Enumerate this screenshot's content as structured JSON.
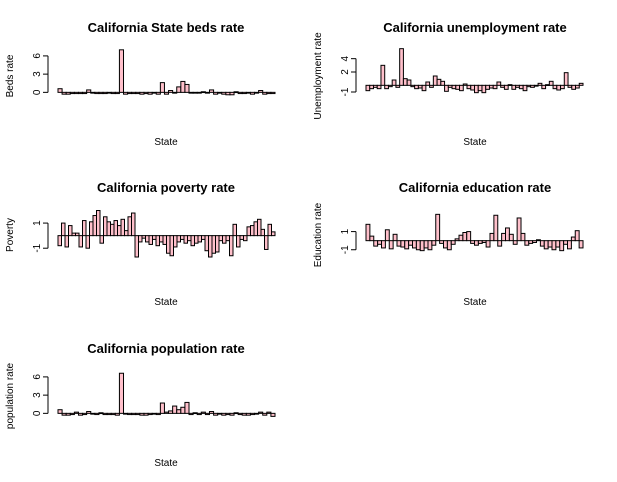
{
  "chart_data": [
    {
      "type": "bar",
      "title": "California State beds rate",
      "xlabel": "State",
      "ylabel": "Beds rate",
      "yticks": [
        0,
        3,
        6
      ],
      "ylim": [
        -0.6,
        7.3
      ],
      "bar_fill": "#ffc0cb",
      "bar_stroke": "#000000",
      "values": [
        0.6,
        -0.3,
        -0.3,
        -0.2,
        -0.2,
        -0.2,
        -0.2,
        0.4,
        -0.1,
        -0.2,
        -0.2,
        -0.2,
        -0.1,
        -0.2,
        -0.2,
        7.0,
        -0.3,
        -0.2,
        -0.2,
        -0.2,
        -0.3,
        -0.2,
        -0.3,
        0.0,
        -0.3,
        1.6,
        -0.3,
        0.3,
        0.0,
        0.9,
        1.8,
        1.3,
        0.0,
        -0.1,
        0.0,
        0.1,
        -0.1,
        0.4,
        -0.3,
        -0.1,
        -0.3,
        -0.4,
        -0.4,
        0.1,
        -0.2,
        -0.2,
        0.0,
        -0.3,
        0.0,
        0.3,
        -0.3,
        -0.2,
        -0.2
      ]
    },
    {
      "type": "bar",
      "title": "California unemployment rate",
      "xlabel": "State",
      "ylabel": "Unemployment rate",
      "yticks": [
        -1,
        2,
        4
      ],
      "ylim": [
        -1.6,
        5.6
      ],
      "bar_fill": "#ffc0cb",
      "bar_stroke": "#000000",
      "values": [
        -0.8,
        -0.5,
        -0.3,
        -0.5,
        3.0,
        -0.5,
        -0.2,
        0.8,
        -0.3,
        5.5,
        1.0,
        0.8,
        -0.2,
        -0.5,
        -0.4,
        -0.8,
        0.5,
        -0.3,
        1.4,
        0.9,
        0.6,
        -0.9,
        -0.3,
        -0.5,
        -0.6,
        -0.8,
        0.2,
        -0.5,
        -0.7,
        -1.1,
        -0.8,
        -1.1,
        -0.6,
        -0.4,
        -0.5,
        0.5,
        -0.3,
        -0.6,
        0.1,
        -0.6,
        -0.3,
        -0.5,
        -0.8,
        -0.2,
        -0.3,
        -0.1,
        0.3,
        -0.5,
        0.1,
        0.6,
        -0.5,
        -0.7,
        -0.5,
        1.9,
        -0.3,
        -0.6,
        -0.4,
        0.3
      ]
    },
    {
      "type": "bar",
      "title": "California poverty rate",
      "xlabel": "State",
      "ylabel": "Poverty",
      "yticks": [
        -1,
        1
      ],
      "ylim": [
        -1.7,
        2.2
      ],
      "bar_fill": "#ffc0cb",
      "bar_stroke": "#000000",
      "values": [
        -0.8,
        1.0,
        -0.9,
        0.8,
        0.2,
        0.2,
        -0.9,
        1.2,
        -1.0,
        1.1,
        1.6,
        2.0,
        -0.6,
        1.5,
        1.1,
        0.9,
        1.2,
        0.8,
        1.3,
        0.4,
        1.5,
        1.8,
        -1.7,
        -0.5,
        -0.2,
        -0.5,
        -0.7,
        -0.3,
        -0.8,
        -0.5,
        -0.7,
        -1.4,
        -1.6,
        -0.9,
        -0.5,
        -0.3,
        -0.6,
        -0.4,
        -0.8,
        -0.6,
        -0.5,
        -0.3,
        -1.2,
        -1.7,
        -1.4,
        -1.3,
        -0.4,
        -0.6,
        -0.4,
        -1.6,
        0.9,
        -0.9,
        -0.3,
        -0.4,
        0.7,
        0.8,
        1.1,
        1.3,
        0.5,
        -1.1,
        0.9,
        0.3
      ]
    },
    {
      "type": "bar",
      "title": "California education rate",
      "xlabel": "State",
      "ylabel": "Education rate",
      "yticks": [
        -1,
        1
      ],
      "ylim": [
        -1.8,
        3.6
      ],
      "bar_fill": "#ffc0cb",
      "bar_stroke": "#000000",
      "values": [
        1.8,
        0.5,
        -0.6,
        -0.4,
        -0.8,
        1.2,
        -0.9,
        0.7,
        -0.6,
        -0.7,
        -0.9,
        -0.5,
        -0.8,
        -1.0,
        -1.1,
        -0.8,
        -1.0,
        -0.5,
        2.9,
        -0.3,
        -0.8,
        -1.0,
        -0.4,
        0.2,
        0.6,
        0.9,
        1.0,
        -0.3,
        -0.5,
        -0.3,
        -0.2,
        -0.7,
        0.8,
        2.8,
        -0.6,
        0.8,
        1.4,
        0.7,
        -0.4,
        2.5,
        0.8,
        -0.5,
        -0.3,
        -0.2,
        0.1,
        -0.6,
        -0.9,
        -0.7,
        -1.0,
        -0.7,
        -1.1,
        -0.4,
        -0.9,
        0.4,
        1.1,
        -0.8
      ]
    },
    {
      "type": "bar",
      "title": "California population rate",
      "xlabel": "State",
      "ylabel": "population rate",
      "yticks": [
        0,
        3,
        6
      ],
      "ylim": [
        -0.6,
        7.3
      ],
      "bar_fill": "#ffc0cb",
      "bar_stroke": "#000000",
      "values": [
        0.6,
        -0.3,
        -0.3,
        -0.2,
        0.2,
        -0.3,
        -0.2,
        0.3,
        -0.1,
        -0.2,
        0.1,
        -0.2,
        -0.2,
        -0.2,
        -0.3,
        6.6,
        -0.1,
        -0.2,
        -0.2,
        -0.2,
        -0.3,
        -0.3,
        -0.2,
        0.0,
        -0.2,
        1.7,
        0.2,
        0.4,
        1.2,
        0.6,
        1.0,
        1.8,
        -0.2,
        0.1,
        -0.2,
        0.2,
        -0.2,
        0.3,
        -0.3,
        -0.1,
        -0.3,
        -0.2,
        -0.3,
        0.1,
        -0.2,
        -0.3,
        -0.3,
        -0.2,
        0.0,
        0.2,
        -0.3,
        0.2,
        -0.5
      ]
    }
  ]
}
